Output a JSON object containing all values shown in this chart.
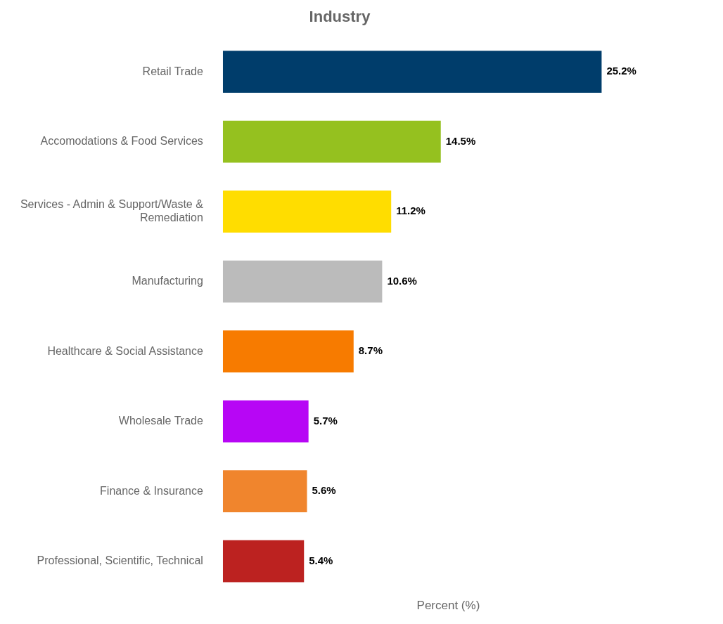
{
  "chart_data": {
    "type": "bar",
    "orientation": "horizontal",
    "title": "Industry",
    "xlabel": "Percent (%)",
    "categories": [
      "Retail Trade",
      "Accomodations & Food Services",
      "Services - Admin & Support/Waste & Remediation",
      "Manufacturing",
      "Healthcare & Social Assistance",
      "Wholesale Trade",
      "Finance & Insurance",
      "Professional, Scientific, Technical"
    ],
    "values": [
      25.2,
      14.5,
      11.2,
      10.6,
      8.7,
      5.7,
      5.6,
      5.4
    ],
    "colors": [
      "#003d6b",
      "#95c11f",
      "#ffdd00",
      "#bbbbbb",
      "#f77b00",
      "#b706f5",
      "#f0852d",
      "#bc2220"
    ],
    "value_labels": [
      "25.2%",
      "14.5%",
      "11.2%",
      "10.6%",
      "8.7%",
      "5.7%",
      "5.6%",
      "5.4%"
    ],
    "tick_labels": "y",
    "grid": false,
    "legend": false
  }
}
